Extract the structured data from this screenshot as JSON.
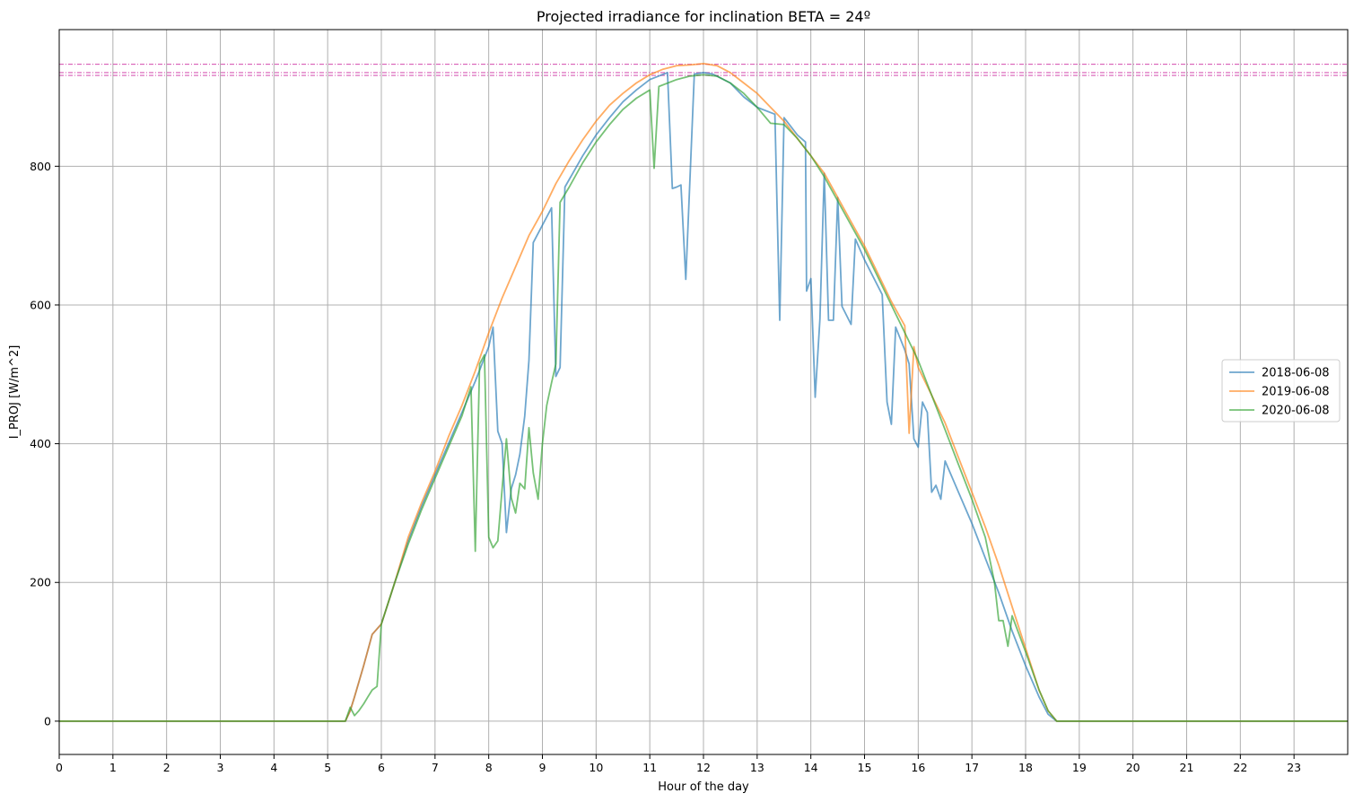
{
  "chart_data": {
    "type": "line",
    "title": "Projected irradiance for inclination BETA = 24º",
    "xlabel": "Hour of the day",
    "ylabel": "I_PROJ [W/m^2]",
    "xlim": [
      0,
      24
    ],
    "ylim": [
      -48,
      997
    ],
    "xticks": [
      0,
      1,
      2,
      3,
      4,
      5,
      6,
      7,
      8,
      9,
      10,
      11,
      12,
      13,
      14,
      15,
      16,
      17,
      18,
      19,
      20,
      21,
      22,
      23
    ],
    "yticks": [
      0,
      200,
      400,
      600,
      800
    ],
    "grid": true,
    "legend_position": "center-right",
    "reference_lines": [
      {
        "y": 947,
        "color": "#c81896",
        "style": "dashdot"
      },
      {
        "y": 935,
        "color": "#c81896",
        "style": "dashdot"
      },
      {
        "y": 931,
        "color": "#c81896",
        "style": "dashdot"
      }
    ],
    "series": [
      {
        "name": "2018-06-08",
        "color": "#1f77b4",
        "points": [
          [
            0,
            0
          ],
          [
            5.33,
            0
          ],
          [
            5.42,
            15
          ],
          [
            5.5,
            35
          ],
          [
            5.67,
            80
          ],
          [
            5.83,
            125
          ],
          [
            6,
            140
          ],
          [
            6.25,
            200
          ],
          [
            6.5,
            260
          ],
          [
            6.75,
            310
          ],
          [
            7,
            355
          ],
          [
            7.25,
            400
          ],
          [
            7.5,
            445
          ],
          [
            7.75,
            490
          ],
          [
            8,
            540
          ],
          [
            8.08,
            568
          ],
          [
            8.17,
            418
          ],
          [
            8.25,
            400
          ],
          [
            8.33,
            272
          ],
          [
            8.42,
            335
          ],
          [
            8.5,
            355
          ],
          [
            8.58,
            385
          ],
          [
            8.67,
            440
          ],
          [
            8.75,
            520
          ],
          [
            8.83,
            690
          ],
          [
            9,
            715
          ],
          [
            9.17,
            740
          ],
          [
            9.25,
            497
          ],
          [
            9.33,
            510
          ],
          [
            9.42,
            770
          ],
          [
            9.75,
            815
          ],
          [
            10,
            845
          ],
          [
            10.25,
            870
          ],
          [
            10.5,
            893
          ],
          [
            10.75,
            910
          ],
          [
            11,
            925
          ],
          [
            11.33,
            935
          ],
          [
            11.42,
            768
          ],
          [
            11.5,
            770
          ],
          [
            11.58,
            773
          ],
          [
            11.67,
            637
          ],
          [
            11.83,
            933
          ],
          [
            12,
            935
          ],
          [
            12.17,
            933
          ],
          [
            12.5,
            920
          ],
          [
            12.75,
            900
          ],
          [
            13,
            885
          ],
          [
            13.33,
            875
          ],
          [
            13.42,
            578
          ],
          [
            13.5,
            870
          ],
          [
            13.75,
            845
          ],
          [
            13.9,
            835
          ],
          [
            13.92,
            620
          ],
          [
            14,
            638
          ],
          [
            14.08,
            467
          ],
          [
            14.17,
            580
          ],
          [
            14.25,
            790
          ],
          [
            14.33,
            578
          ],
          [
            14.42,
            578
          ],
          [
            14.5,
            755
          ],
          [
            14.58,
            598
          ],
          [
            14.75,
            572
          ],
          [
            14.83,
            695
          ],
          [
            15,
            665
          ],
          [
            15.33,
            615
          ],
          [
            15.42,
            460
          ],
          [
            15.5,
            428
          ],
          [
            15.58,
            568
          ],
          [
            15.75,
            535
          ],
          [
            15.83,
            515
          ],
          [
            15.92,
            407
          ],
          [
            16,
            395
          ],
          [
            16.08,
            460
          ],
          [
            16.17,
            445
          ],
          [
            16.25,
            330
          ],
          [
            16.33,
            340
          ],
          [
            16.42,
            320
          ],
          [
            16.5,
            375
          ],
          [
            16.75,
            330
          ],
          [
            17,
            285
          ],
          [
            17.25,
            235
          ],
          [
            17.5,
            185
          ],
          [
            17.75,
            130
          ],
          [
            18,
            80
          ],
          [
            18.25,
            35
          ],
          [
            18.42,
            10
          ],
          [
            18.58,
            0
          ],
          [
            24,
            0
          ]
        ]
      },
      {
        "name": "2019-06-08",
        "color": "#ff7f0e",
        "points": [
          [
            0,
            0
          ],
          [
            5.33,
            0
          ],
          [
            5.42,
            15
          ],
          [
            5.5,
            35
          ],
          [
            5.67,
            80
          ],
          [
            5.83,
            125
          ],
          [
            6,
            140
          ],
          [
            6.25,
            200
          ],
          [
            6.5,
            265
          ],
          [
            6.75,
            315
          ],
          [
            7,
            360
          ],
          [
            7.25,
            410
          ],
          [
            7.5,
            455
          ],
          [
            7.75,
            505
          ],
          [
            8,
            560
          ],
          [
            8.25,
            610
          ],
          [
            8.5,
            655
          ],
          [
            8.75,
            700
          ],
          [
            9,
            735
          ],
          [
            9.25,
            775
          ],
          [
            9.5,
            808
          ],
          [
            9.75,
            838
          ],
          [
            10,
            865
          ],
          [
            10.25,
            888
          ],
          [
            10.5,
            905
          ],
          [
            10.75,
            920
          ],
          [
            11,
            932
          ],
          [
            11.25,
            940
          ],
          [
            11.5,
            945
          ],
          [
            11.75,
            946
          ],
          [
            12,
            948
          ],
          [
            12.25,
            945
          ],
          [
            12.5,
            935
          ],
          [
            12.75,
            920
          ],
          [
            13,
            905
          ],
          [
            13.25,
            885
          ],
          [
            13.5,
            865
          ],
          [
            13.75,
            840
          ],
          [
            14,
            815
          ],
          [
            14.25,
            790
          ],
          [
            14.5,
            755
          ],
          [
            14.75,
            720
          ],
          [
            15,
            685
          ],
          [
            15.25,
            645
          ],
          [
            15.5,
            605
          ],
          [
            15.75,
            570
          ],
          [
            15.83,
            415
          ],
          [
            15.92,
            540
          ],
          [
            16,
            510
          ],
          [
            16.25,
            470
          ],
          [
            16.5,
            430
          ],
          [
            16.75,
            380
          ],
          [
            17,
            330
          ],
          [
            17.25,
            280
          ],
          [
            17.5,
            225
          ],
          [
            17.75,
            165
          ],
          [
            18,
            105
          ],
          [
            18.25,
            45
          ],
          [
            18.42,
            15
          ],
          [
            18.58,
            0
          ],
          [
            24,
            0
          ]
        ]
      },
      {
        "name": "2020-06-08",
        "color": "#2ca02c",
        "points": [
          [
            0,
            0
          ],
          [
            5.33,
            0
          ],
          [
            5.42,
            20
          ],
          [
            5.5,
            8
          ],
          [
            5.58,
            15
          ],
          [
            5.67,
            25
          ],
          [
            5.75,
            35
          ],
          [
            5.83,
            45
          ],
          [
            5.92,
            50
          ],
          [
            6,
            140
          ],
          [
            6.25,
            200
          ],
          [
            6.5,
            255
          ],
          [
            6.75,
            305
          ],
          [
            7,
            350
          ],
          [
            7.25,
            395
          ],
          [
            7.5,
            440
          ],
          [
            7.67,
            482
          ],
          [
            7.75,
            245
          ],
          [
            7.83,
            515
          ],
          [
            7.92,
            528
          ],
          [
            8,
            265
          ],
          [
            8.08,
            250
          ],
          [
            8.17,
            260
          ],
          [
            8.25,
            335
          ],
          [
            8.33,
            407
          ],
          [
            8.42,
            322
          ],
          [
            8.5,
            300
          ],
          [
            8.58,
            343
          ],
          [
            8.67,
            335
          ],
          [
            8.75,
            423
          ],
          [
            8.83,
            358
          ],
          [
            8.92,
            320
          ],
          [
            9,
            400
          ],
          [
            9.08,
            455
          ],
          [
            9.17,
            488
          ],
          [
            9.25,
            515
          ],
          [
            9.33,
            748
          ],
          [
            9.5,
            770
          ],
          [
            9.75,
            805
          ],
          [
            10,
            835
          ],
          [
            10.25,
            860
          ],
          [
            10.5,
            882
          ],
          [
            10.75,
            898
          ],
          [
            11,
            910
          ],
          [
            11.08,
            797
          ],
          [
            11.17,
            915
          ],
          [
            11.5,
            925
          ],
          [
            11.75,
            930
          ],
          [
            12,
            932
          ],
          [
            12.25,
            930
          ],
          [
            12.5,
            920
          ],
          [
            12.75,
            905
          ],
          [
            13,
            885
          ],
          [
            13.25,
            862
          ],
          [
            13.5,
            860
          ],
          [
            13.75,
            840
          ],
          [
            14,
            815
          ],
          [
            14.25,
            785
          ],
          [
            14.5,
            750
          ],
          [
            14.75,
            715
          ],
          [
            15,
            680
          ],
          [
            15.25,
            640
          ],
          [
            15.5,
            600
          ],
          [
            15.75,
            560
          ],
          [
            16,
            520
          ],
          [
            16.25,
            470
          ],
          [
            16.5,
            420
          ],
          [
            16.75,
            370
          ],
          [
            17,
            320
          ],
          [
            17.25,
            265
          ],
          [
            17.42,
            200
          ],
          [
            17.5,
            145
          ],
          [
            17.58,
            145
          ],
          [
            17.67,
            108
          ],
          [
            17.75,
            152
          ],
          [
            18,
            100
          ],
          [
            18.25,
            45
          ],
          [
            18.42,
            15
          ],
          [
            18.58,
            0
          ],
          [
            24,
            0
          ]
        ]
      }
    ]
  }
}
